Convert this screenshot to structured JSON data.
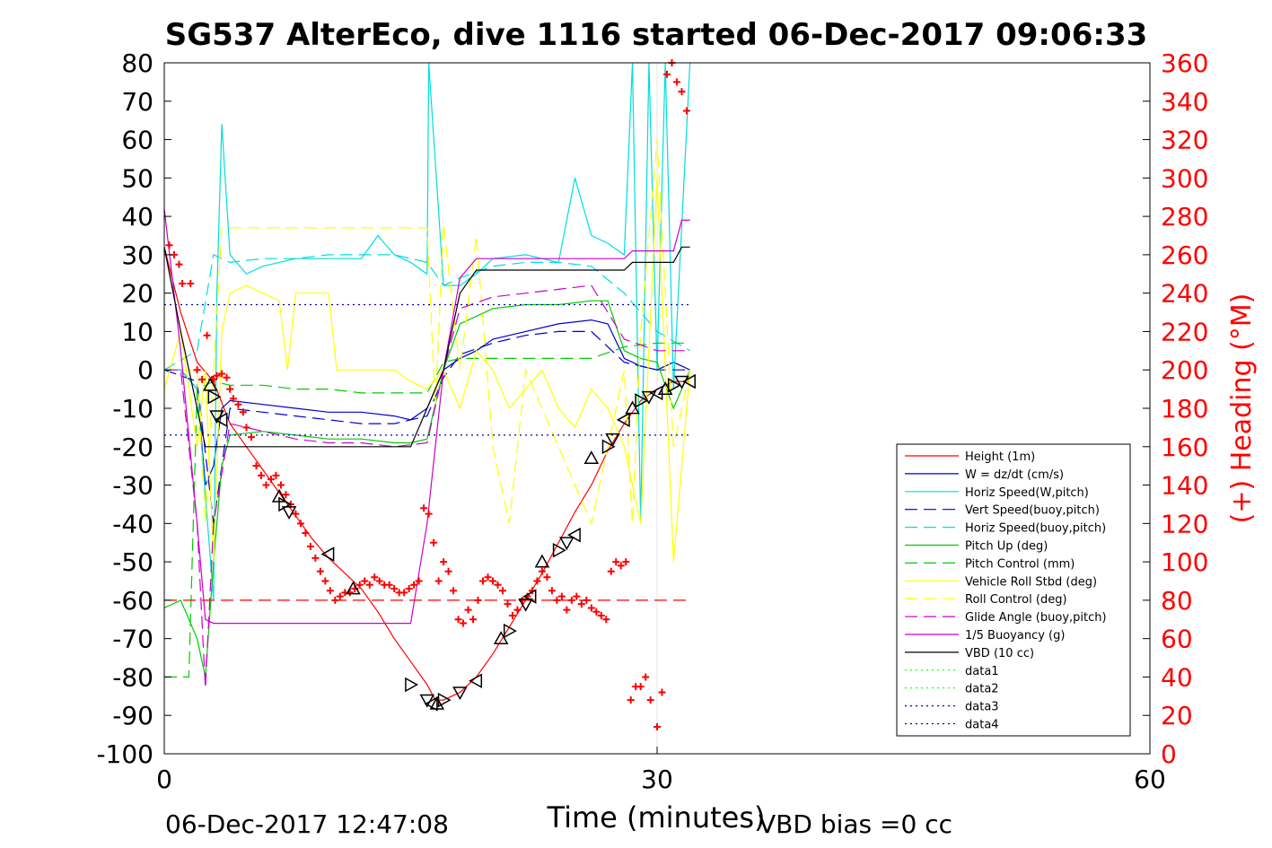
{
  "chart_data": {
    "type": "line",
    "title": "SG537 AlterEco, dive 1116 started 06-Dec-2017 09:06:33",
    "xlabel": "Time (minutes)",
    "ylabel": "",
    "y2label": "(+) Heading (°M)",
    "xlim": [
      0,
      60
    ],
    "ylim": [
      -100,
      80
    ],
    "y2lim": [
      0,
      360
    ],
    "x_ticks": [
      "0",
      "30",
      "60"
    ],
    "y_ticks": [
      "80",
      "70",
      "60",
      "50",
      "40",
      "30",
      "20",
      "10",
      "0",
      "-10",
      "-20",
      "-30",
      "-40",
      "-50",
      "-60",
      "-70",
      "-80",
      "-90",
      "-100"
    ],
    "y2_ticks": [
      "360",
      "340",
      "320",
      "300",
      "280",
      "260",
      "240",
      "220",
      "200",
      "180",
      "160",
      "140",
      "120",
      "100",
      "80",
      "60",
      "40",
      "20",
      "0"
    ],
    "footer_left": "06-Dec-2017 12:47:08",
    "footer_right": "VBD bias =0 cc",
    "legend_position": "lower-right",
    "colors": {
      "axis": "#000000",
      "heading": "#ff0000",
      "grid": "#e6e6e6"
    },
    "series": [
      {
        "name": "Height (1m)",
        "color": "#ff0000",
        "dash": "solid",
        "x": [
          0,
          1,
          2,
          3,
          4,
          5,
          6,
          7,
          8,
          9,
          10,
          11,
          12,
          13,
          14,
          15,
          16,
          16.5,
          17,
          17.5,
          18,
          19,
          20,
          21,
          22,
          23,
          24,
          25,
          26,
          27,
          28,
          29,
          30,
          31,
          32
        ],
        "y": [
          32,
          15,
          2,
          -3,
          -14,
          -20,
          -26,
          -32,
          -38,
          -44,
          -49,
          -53,
          -57,
          -63,
          -70,
          -76,
          -82,
          -86,
          -86,
          -85,
          -84,
          -80,
          -74,
          -67,
          -60,
          -53,
          -45,
          -37,
          -30,
          -21,
          -14,
          -8,
          -5,
          -3,
          -3
        ]
      },
      {
        "name": "W = dz/dt (cm/s)",
        "color": "#0000cc",
        "dash": "solid",
        "x": [
          0,
          1,
          2,
          2.5,
          3,
          3.5,
          4,
          6,
          8,
          10,
          12,
          14,
          15,
          16,
          17,
          18,
          19,
          20,
          22,
          24,
          26,
          27,
          28,
          29,
          30,
          31,
          32
        ],
        "y": [
          0,
          0,
          -5,
          -30,
          -25,
          -10,
          -8,
          -9,
          -10,
          -11,
          -11,
          -12,
          -13,
          -10,
          0,
          3,
          5,
          8,
          10,
          12,
          13,
          12,
          3,
          1,
          0,
          2,
          0
        ]
      },
      {
        "name": "Horiz Speed(W,pitch)",
        "color": "#00dddd",
        "dash": "solid",
        "x": [
          0,
          1,
          2,
          3,
          3.2,
          3.5,
          4,
          5,
          6,
          8,
          10,
          12,
          13,
          14,
          15,
          16,
          16.1,
          17,
          18,
          19,
          20,
          22,
          24,
          25,
          26,
          27,
          28,
          28.5,
          29,
          29.5,
          30,
          30.5,
          31,
          32
        ],
        "y": [
          0,
          0,
          -5,
          -60,
          20,
          64,
          30,
          25,
          27,
          29,
          29,
          29,
          35,
          30,
          28,
          25,
          80,
          22,
          22,
          25,
          29,
          30,
          28,
          50,
          35,
          33,
          30,
          80,
          -40,
          80,
          0,
          80,
          -5,
          80
        ]
      },
      {
        "name": "Vert Speed(buoy,pitch)",
        "color": "#0000cc",
        "dash": "dash",
        "x": [
          0,
          2,
          3,
          4,
          6,
          8,
          10,
          12,
          14,
          16,
          17,
          18,
          20,
          22,
          24,
          26,
          28,
          30,
          32
        ],
        "y": [
          0,
          -3,
          -40,
          -10,
          -11,
          -12,
          -13,
          -14,
          -14,
          -12,
          -2,
          4,
          7,
          9,
          10,
          10,
          2,
          0,
          0
        ]
      },
      {
        "name": "Horiz Speed(buoy,pitch)",
        "color": "#00dddd",
        "dash": "dash",
        "x": [
          0,
          2,
          3,
          4,
          6,
          8,
          10,
          12,
          14,
          16,
          17,
          18,
          20,
          22,
          24,
          26,
          28,
          30,
          32
        ],
        "y": [
          0,
          5,
          30,
          28,
          29,
          29,
          30,
          30,
          30,
          28,
          22,
          24,
          27,
          28,
          28,
          27,
          20,
          10,
          5
        ]
      },
      {
        "name": "Pitch Up (deg)",
        "color": "#00cc00",
        "dash": "solid",
        "x": [
          0,
          1,
          2,
          2.5,
          3,
          3.5,
          4,
          6,
          8,
          10,
          12,
          14,
          15,
          16,
          17,
          18,
          20,
          22,
          24,
          26,
          27,
          28,
          29,
          30,
          31,
          32
        ],
        "y": [
          -62,
          -60,
          -70,
          -80,
          -50,
          -25,
          -17,
          -16,
          -17,
          -18,
          -18,
          -19,
          -19,
          -18,
          0,
          12,
          16,
          17,
          17,
          18,
          18,
          5,
          3,
          2,
          -10,
          0
        ]
      },
      {
        "name": "Pitch Control (mm)",
        "color": "#00cc00",
        "dash": "dash",
        "x": [
          0,
          1.5,
          2,
          3,
          4,
          6,
          8,
          10,
          12,
          14,
          16,
          17,
          18,
          20,
          22,
          24,
          26,
          28,
          30,
          32
        ],
        "y": [
          -80,
          -80,
          -5,
          -3,
          -4,
          -4,
          -5,
          -5,
          -6,
          -6,
          -6,
          2,
          3,
          3,
          3,
          3,
          3,
          6,
          7,
          7
        ]
      },
      {
        "name": "Vehicle Roll Stbd (deg)",
        "color": "#ffff00",
        "dash": "solid",
        "x": [
          0,
          1,
          2,
          2.5,
          3,
          3.5,
          4,
          5,
          6,
          7,
          7.5,
          8,
          9,
          10,
          10.5,
          11,
          12,
          14,
          15,
          16,
          17,
          18,
          19,
          20,
          21,
          22,
          23,
          24,
          25,
          26,
          27,
          28,
          29,
          30,
          31,
          32
        ],
        "y": [
          -5,
          10,
          -20,
          0,
          -50,
          10,
          20,
          22,
          20,
          18,
          0,
          20,
          20,
          20,
          0,
          0,
          0,
          0,
          -3,
          -5,
          0,
          -10,
          5,
          0,
          -10,
          -5,
          0,
          -10,
          -15,
          -5,
          -10,
          -20,
          -40,
          50,
          -50,
          0
        ]
      },
      {
        "name": "Roll Control (deg)",
        "color": "#ffff00",
        "dash": "dash",
        "x": [
          0,
          2,
          2.5,
          3,
          3.5,
          4,
          6,
          8,
          10,
          12,
          14,
          16,
          16.5,
          17,
          18,
          19,
          20,
          21,
          22,
          24,
          26,
          27,
          28,
          28.5,
          29,
          30,
          31,
          32
        ],
        "y": [
          0,
          0,
          -40,
          0,
          37,
          37,
          37,
          37,
          37,
          37,
          37,
          37,
          -10,
          38,
          0,
          35,
          -20,
          -40,
          0,
          -20,
          -40,
          -20,
          0,
          -40,
          10,
          60,
          -20,
          0
        ]
      },
      {
        "name": "Glide Angle (buoy,pitch)",
        "color": "#cc00cc",
        "dash": "dash",
        "x": [
          0,
          1,
          2,
          2.5,
          3,
          4,
          6,
          8,
          10,
          12,
          14,
          16,
          17,
          18,
          20,
          22,
          24,
          26,
          28,
          30,
          32
        ],
        "y": [
          0,
          0,
          -40,
          -83,
          -40,
          -14,
          -16,
          -18,
          -19,
          -19,
          -20,
          -19,
          0,
          16,
          19,
          20,
          21,
          22,
          8,
          5,
          5
        ]
      },
      {
        "name": "1/5 Buoyancy (g)",
        "color": "#cc00cc",
        "dash": "solid",
        "x": [
          0,
          1,
          2,
          2.5,
          3,
          4,
          15,
          16,
          17,
          18,
          19,
          20,
          28,
          28.5,
          30,
          31,
          31.5,
          32
        ],
        "y": [
          42,
          5,
          -40,
          -65,
          -66,
          -66,
          -66,
          -40,
          0,
          24,
          29,
          29,
          29,
          31,
          31,
          31,
          39,
          39
        ]
      },
      {
        "name": "VBD (10 cc)",
        "color": "#000000",
        "dash": "solid",
        "x": [
          0,
          1,
          2,
          2.5,
          3,
          15,
          16,
          17,
          18,
          19,
          20,
          28,
          28.5,
          31,
          31.5,
          32
        ],
        "y": [
          32,
          10,
          -10,
          -20,
          -20,
          -20,
          -10,
          0,
          20,
          26,
          26,
          26,
          28,
          28,
          32,
          32
        ]
      },
      {
        "name": "data1",
        "color": "#00ff00",
        "dash": "dot",
        "x": [],
        "y": []
      },
      {
        "name": "data2",
        "color": "#00ff00",
        "dash": "dot",
        "x": [],
        "y": []
      },
      {
        "name": "data3",
        "color": "#0000aa",
        "dash": "dot",
        "x": [
          0,
          32
        ],
        "y": [
          17,
          17
        ]
      },
      {
        "name": "data4",
        "color": "#0000aa",
        "dash": "dot",
        "x": [
          0,
          32
        ],
        "y": [
          -17,
          -17
        ]
      }
    ],
    "reference_lines": [
      {
        "color": "#ff0000",
        "dash": "dash",
        "y": -60,
        "x": [
          0,
          32
        ]
      }
    ],
    "heading_points": {
      "color": "#ff0000",
      "x": [
        0.3,
        0.6,
        0.9,
        1.1,
        1.6,
        2.0,
        2.3,
        2.6,
        2.9,
        3.0,
        3.2,
        3.5,
        3.8,
        4.0,
        4.2,
        4.5,
        4.8,
        5,
        5.3,
        5.6,
        5.9,
        6.2,
        6.5,
        6.8,
        7.1,
        7.4,
        7.7,
        8,
        8.3,
        8.6,
        8.9,
        9.2,
        9.5,
        9.8,
        10.1,
        10.4,
        10.7,
        11,
        11.3,
        11.6,
        11.9,
        12.2,
        12.5,
        12.8,
        13.1,
        13.4,
        13.7,
        14,
        14.3,
        14.6,
        14.9,
        15.2,
        15.5,
        15.8,
        16.1,
        16.4,
        16.7,
        17,
        17.3,
        17.6,
        17.9,
        18.2,
        18.5,
        18.8,
        19.1,
        19.4,
        19.7,
        20,
        20.3,
        20.6,
        20.9,
        21.2,
        21.5,
        21.8,
        22.1,
        22.4,
        22.7,
        23,
        23.3,
        23.6,
        23.9,
        24.2,
        24.5,
        24.8,
        25.1,
        25.4,
        25.7,
        26,
        26.3,
        26.6,
        26.9,
        27.2,
        27.5,
        27.8,
        28.1,
        28.4,
        28.7,
        29,
        29.3,
        29.6,
        30,
        30.3,
        30.6,
        30.9,
        31.2,
        31.5,
        31.8
      ],
      "y": [
        265,
        260,
        255,
        245,
        245,
        200,
        195,
        218,
        195,
        195,
        197,
        198,
        196,
        190,
        185,
        182,
        178,
        170,
        165,
        150,
        145,
        140,
        143,
        145,
        140,
        135,
        130,
        125,
        120,
        115,
        108,
        102,
        95,
        90,
        85,
        80,
        82,
        84,
        84,
        86,
        88,
        90,
        88,
        92,
        90,
        88,
        88,
        86,
        84,
        84,
        86,
        88,
        90,
        128,
        125,
        110,
        90,
        100,
        95,
        85,
        70,
        68,
        75,
        70,
        80,
        90,
        92,
        90,
        88,
        85,
        78,
        72,
        75,
        80,
        82,
        85,
        90,
        95,
        92,
        85,
        80,
        82,
        75,
        80,
        82,
        78,
        80,
        76,
        74,
        72,
        70,
        95,
        100,
        98,
        100,
        28,
        35,
        35,
        40,
        28,
        14,
        32,
        354,
        360,
        350,
        345,
        335
      ]
    },
    "markers": {
      "color": "#000000",
      "x": [
        2.8,
        3.0,
        3.2,
        3.5,
        7.0,
        7.3,
        7.6,
        10,
        11.5,
        15,
        16,
        16.3,
        16.6,
        17,
        18,
        19,
        20.5,
        21,
        22,
        22.3,
        23,
        24,
        24.5,
        25,
        26,
        27,
        27.3,
        28,
        28.5,
        29,
        29.5,
        30,
        30.5,
        31,
        31.5,
        32
      ],
      "y": [
        -4,
        -7,
        -12,
        -13,
        -33,
        -35,
        -37,
        -48,
        -57,
        -82,
        -86,
        -87,
        -87,
        -86,
        -84,
        -81,
        -70,
        -68,
        -61,
        -59,
        -50,
        -47,
        -45,
        -43,
        -23,
        -20,
        -18,
        -13,
        -10,
        -8,
        -7,
        -6,
        -5,
        -4,
        -3,
        -3
      ]
    }
  }
}
